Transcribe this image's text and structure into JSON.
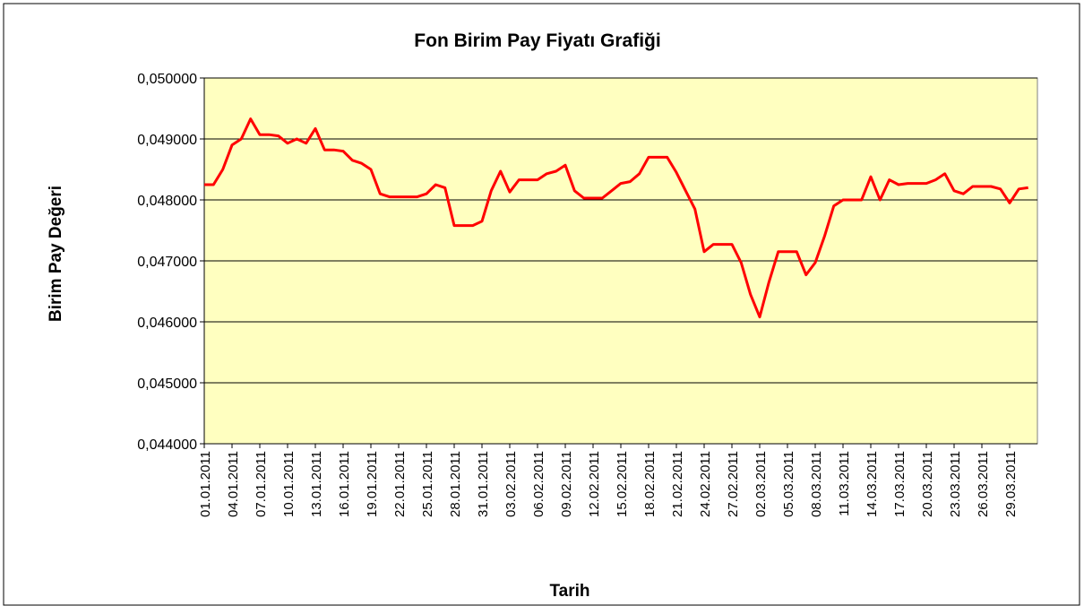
{
  "chart_data": {
    "type": "line",
    "title": "Fon Birim Pay Fiyatı Grafiği",
    "x_label": "Tarih",
    "y_label": "Birim Pay  Değeri",
    "categories": [
      "01.01.2011",
      null,
      null,
      "04.01.2011",
      null,
      null,
      "07.01.2011",
      null,
      null,
      "10.01.2011",
      null,
      null,
      "13.01.2011",
      null,
      null,
      "16.01.2011",
      null,
      null,
      "19.01.2011",
      null,
      null,
      "22.01.2011",
      null,
      null,
      "25.01.2011",
      null,
      null,
      "28.01.2011",
      null,
      null,
      "31.01.2011",
      null,
      null,
      "03.02.2011",
      null,
      null,
      "06.02.2011",
      null,
      null,
      "09.02.2011",
      null,
      null,
      "12.02.2011",
      null,
      null,
      "15.02.2011",
      null,
      null,
      "18.02.2011",
      null,
      null,
      "21.02.2011",
      null,
      null,
      "24.02.2011",
      null,
      null,
      "27.02.2011",
      null,
      null,
      "02.03.2011",
      null,
      null,
      "05.03.2011",
      null,
      null,
      "08.03.2011",
      null,
      null,
      "11.03.2011",
      null,
      null,
      "14.03.2011",
      null,
      null,
      "17.03.2011",
      null,
      null,
      "20.03.2011",
      null,
      null,
      "23.03.2011",
      null,
      null,
      "26.03.2011",
      null,
      null,
      "29.03.2011",
      null,
      null
    ],
    "values": [
      0.04825,
      0.04825,
      0.0485,
      0.0489,
      0.049,
      0.04933,
      0.04907,
      0.04907,
      0.04905,
      0.04893,
      0.049,
      0.04893,
      0.04917,
      0.04882,
      0.04882,
      0.0488,
      0.04865,
      0.0486,
      0.0485,
      0.0481,
      0.04805,
      0.04805,
      0.04805,
      0.04805,
      0.0481,
      0.04825,
      0.0482,
      0.04758,
      0.04758,
      0.04758,
      0.04765,
      0.04815,
      0.04847,
      0.04813,
      0.04833,
      0.04833,
      0.04833,
      0.04843,
      0.04847,
      0.04857,
      0.04815,
      0.04803,
      0.04803,
      0.04803,
      0.04815,
      0.04827,
      0.0483,
      0.04843,
      0.0487,
      0.0487,
      0.0487,
      0.04845,
      0.04815,
      0.04785,
      0.04715,
      0.04727,
      0.04727,
      0.04727,
      0.04697,
      0.04645,
      0.04608,
      0.04665,
      0.04715,
      0.04715,
      0.04715,
      0.04677,
      0.04697,
      0.0474,
      0.0479,
      0.048,
      0.048,
      0.048,
      0.04838,
      0.048,
      0.04833,
      0.04825,
      0.04827,
      0.04827,
      0.04827,
      0.04833,
      0.04843,
      0.04815,
      0.0481,
      0.04822,
      0.04822,
      0.04822,
      0.04818,
      0.04795,
      0.04818,
      0.0482
    ],
    "color": "#ff0000",
    "plot_background": "#ffffc0",
    "grid": true,
    "ylim": [
      0.044,
      0.05
    ],
    "yticks": [
      {
        "value": 0.044,
        "label": "0,044000"
      },
      {
        "value": 0.045,
        "label": "0,045000"
      },
      {
        "value": 0.046,
        "label": "0,046000"
      },
      {
        "value": 0.047,
        "label": "0,047000"
      },
      {
        "value": 0.048,
        "label": "0,048000"
      },
      {
        "value": 0.049,
        "label": "0,049000"
      },
      {
        "value": 0.05,
        "label": "0,050000"
      }
    ]
  }
}
